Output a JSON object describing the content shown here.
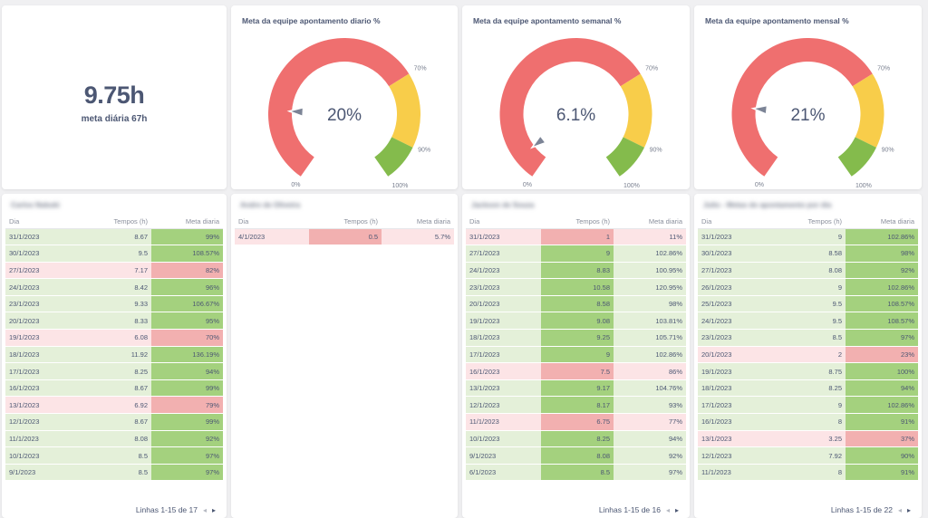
{
  "kpi": {
    "value": "9.75h",
    "subtitle": "meta diária 67h"
  },
  "colors": {
    "red": "#ef6f6f",
    "yellow": "#f8cd4a",
    "green": "#84bb4c",
    "cell_green_light": "#e4f0d9",
    "cell_green_dark": "#a4d17e",
    "cell_red_light": "#fce4e6",
    "cell_red_dark": "#f2b0b0"
  },
  "gauges": [
    {
      "title": "Meta da equipe apontamento diario %",
      "value": 20,
      "display": "20%",
      "labels": {
        "min": "0%",
        "mid": "70%",
        "high": "90%",
        "max": "100%"
      }
    },
    {
      "title": "Meta da equipe apontamento semanal %",
      "value": 6.1,
      "display": "6.1%",
      "labels": {
        "min": "0%",
        "mid": "70%",
        "high": "90%",
        "max": "100%"
      }
    },
    {
      "title": "Meta da equipe apontamento mensal %",
      "value": 21,
      "display": "21%",
      "labels": {
        "min": "0%",
        "mid": "70%",
        "high": "90%",
        "max": "100%"
      }
    }
  ],
  "tables": [
    {
      "title": "Carlos Nabuki",
      "columns": [
        "Dia",
        "Tempos (h)",
        "Meta diaria"
      ],
      "rows": [
        [
          "31/1/2023",
          "8.67",
          "99%",
          "g",
          "g"
        ],
        [
          "30/1/2023",
          "9.5",
          "108.57%",
          "g",
          "g"
        ],
        [
          "27/1/2023",
          "7.17",
          "82%",
          "r",
          "r"
        ],
        [
          "24/1/2023",
          "8.42",
          "96%",
          "g",
          "g"
        ],
        [
          "23/1/2023",
          "9.33",
          "106.67%",
          "g",
          "g"
        ],
        [
          "20/1/2023",
          "8.33",
          "95%",
          "g",
          "g"
        ],
        [
          "19/1/2023",
          "6.08",
          "70%",
          "r",
          "r"
        ],
        [
          "18/1/2023",
          "11.92",
          "136.19%",
          "g",
          "g"
        ],
        [
          "17/1/2023",
          "8.25",
          "94%",
          "g",
          "g"
        ],
        [
          "16/1/2023",
          "8.67",
          "99%",
          "g",
          "g"
        ],
        [
          "13/1/2023",
          "6.92",
          "79%",
          "r",
          "r"
        ],
        [
          "12/1/2023",
          "8.67",
          "99%",
          "g",
          "g"
        ],
        [
          "11/1/2023",
          "8.08",
          "92%",
          "g",
          "g"
        ],
        [
          "10/1/2023",
          "8.5",
          "97%",
          "g",
          "g"
        ],
        [
          "9/1/2023",
          "8.5",
          "97%",
          "g",
          "g"
        ]
      ],
      "pager": "Linhas 1-15 de 17"
    },
    {
      "title": "Andre de Oliveira",
      "columns": [
        "Dia",
        "Tempos (h)",
        "Meta diaria"
      ],
      "rows": [
        [
          "4/1/2023",
          "0.5",
          "5.7%",
          "r",
          "rl"
        ]
      ],
      "pager": ""
    },
    {
      "title": "Jackson de Souza",
      "columns": [
        "Dia",
        "Tempos (h)",
        "Meta diaria"
      ],
      "rows": [
        [
          "31/1/2023",
          "1",
          "11%",
          "r",
          "rl"
        ],
        [
          "27/1/2023",
          "9",
          "102.86%",
          "g",
          "gl"
        ],
        [
          "24/1/2023",
          "8.83",
          "100.95%",
          "g",
          "gl"
        ],
        [
          "23/1/2023",
          "10.58",
          "120.95%",
          "g",
          "gl"
        ],
        [
          "20/1/2023",
          "8.58",
          "98%",
          "g",
          "gl"
        ],
        [
          "19/1/2023",
          "9.08",
          "103.81%",
          "g",
          "gl"
        ],
        [
          "18/1/2023",
          "9.25",
          "105.71%",
          "g",
          "gl"
        ],
        [
          "17/1/2023",
          "9",
          "102.86%",
          "g",
          "gl"
        ],
        [
          "16/1/2023",
          "7.5",
          "86%",
          "r",
          "rl"
        ],
        [
          "13/1/2023",
          "9.17",
          "104.76%",
          "g",
          "gl"
        ],
        [
          "12/1/2023",
          "8.17",
          "93%",
          "g",
          "gl"
        ],
        [
          "11/1/2023",
          "6.75",
          "77%",
          "r",
          "rl"
        ],
        [
          "10/1/2023",
          "8.25",
          "94%",
          "g",
          "gl"
        ],
        [
          "9/1/2023",
          "8.08",
          "92%",
          "g",
          "gl"
        ],
        [
          "6/1/2023",
          "8.5",
          "97%",
          "g",
          "gl"
        ]
      ],
      "pager": "Linhas 1-15 de 16"
    },
    {
      "title": "Julio - Metas de apontamento por dia",
      "columns": [
        "Dia",
        "Tempos (h)",
        "Meta diaria"
      ],
      "rows": [
        [
          "31/1/2023",
          "9",
          "102.86%",
          "g",
          "g"
        ],
        [
          "30/1/2023",
          "8.58",
          "98%",
          "g",
          "g"
        ],
        [
          "27/1/2023",
          "8.08",
          "92%",
          "g",
          "g"
        ],
        [
          "26/1/2023",
          "9",
          "102.86%",
          "g",
          "g"
        ],
        [
          "25/1/2023",
          "9.5",
          "108.57%",
          "g",
          "g"
        ],
        [
          "24/1/2023",
          "9.5",
          "108.57%",
          "g",
          "g"
        ],
        [
          "23/1/2023",
          "8.5",
          "97%",
          "g",
          "g"
        ],
        [
          "20/1/2023",
          "2",
          "23%",
          "r",
          "r"
        ],
        [
          "19/1/2023",
          "8.75",
          "100%",
          "g",
          "g"
        ],
        [
          "18/1/2023",
          "8.25",
          "94%",
          "g",
          "g"
        ],
        [
          "17/1/2023",
          "9",
          "102.86%",
          "g",
          "g"
        ],
        [
          "16/1/2023",
          "8",
          "91%",
          "g",
          "g"
        ],
        [
          "13/1/2023",
          "3.25",
          "37%",
          "r",
          "r"
        ],
        [
          "12/1/2023",
          "7.92",
          "90%",
          "g",
          "g"
        ],
        [
          "11/1/2023",
          "8",
          "91%",
          "g",
          "g"
        ]
      ],
      "pager": "Linhas 1-15 de 22"
    }
  ]
}
